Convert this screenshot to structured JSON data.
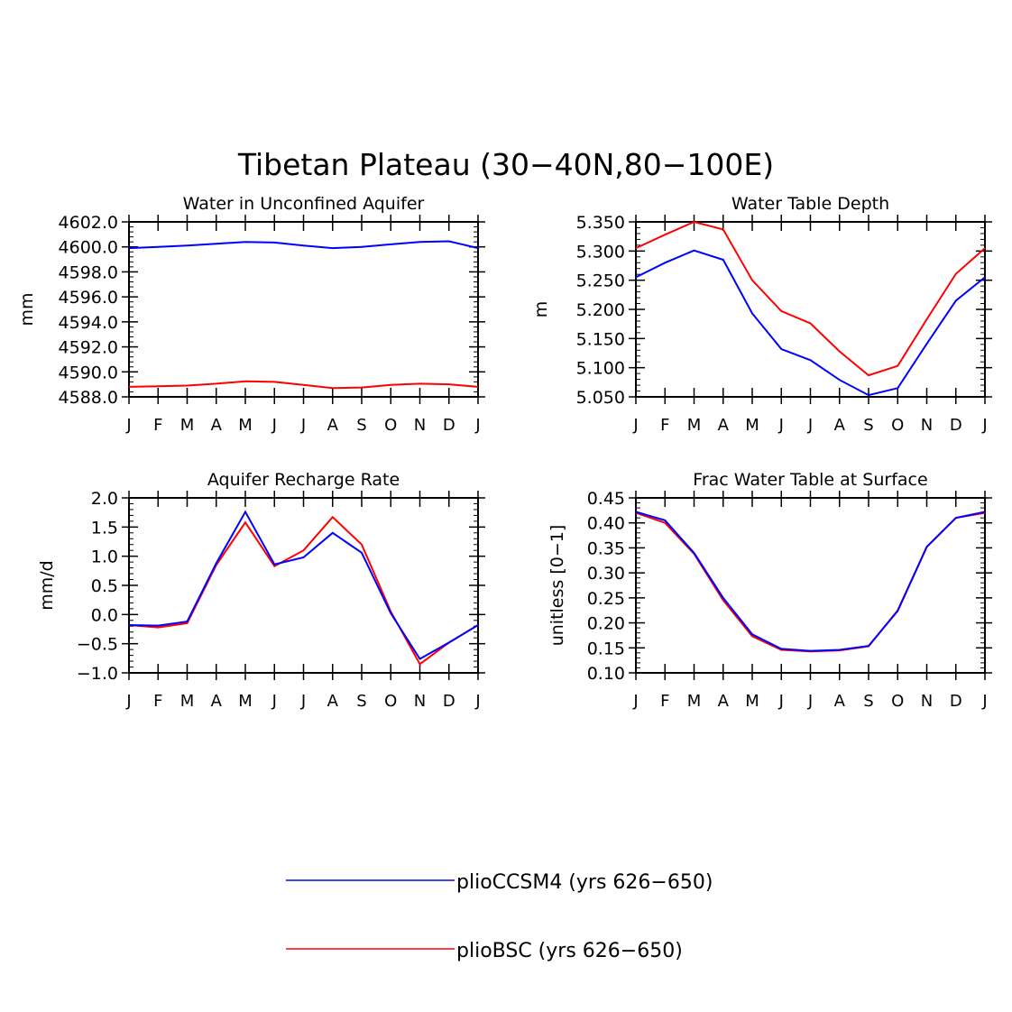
{
  "title": "Tibetan Plateau (30−40N,80−100E)",
  "colors": {
    "series_a": "#0000ff",
    "series_b": "#ff0000",
    "axis": "#000000"
  },
  "legend": [
    {
      "label": "plioCCSM4 (yrs 626−650)",
      "color": "#0000ff"
    },
    {
      "label": "plioBSC (yrs 626−650)",
      "color": "#ff0000"
    }
  ],
  "chart_data": [
    {
      "type": "line",
      "title": "Water in Unconfined Aquifer",
      "ylabel": "mm",
      "xlabel": "",
      "categories": [
        "J",
        "F",
        "M",
        "A",
        "M",
        "J",
        "J",
        "A",
        "S",
        "O",
        "N",
        "D",
        "J"
      ],
      "ylim": [
        4588.0,
        4602.0
      ],
      "yticks": [
        "4588.0",
        "4590.0",
        "4592.0",
        "4594.0",
        "4596.0",
        "4598.0",
        "4600.0",
        "4602.0"
      ],
      "series": [
        {
          "color": "#0000ff",
          "values": [
            4599.9,
            4600.0,
            4600.1,
            4600.25,
            4600.4,
            4600.35,
            4600.1,
            4599.9,
            4600.0,
            4600.2,
            4600.4,
            4600.45,
            4599.9
          ]
        },
        {
          "color": "#ff0000",
          "values": [
            4588.8,
            4588.85,
            4588.9,
            4589.05,
            4589.25,
            4589.2,
            4588.95,
            4588.7,
            4588.75,
            4588.95,
            4589.05,
            4589.0,
            4588.8
          ]
        }
      ]
    },
    {
      "type": "line",
      "title": "Water Table Depth",
      "ylabel": "m",
      "xlabel": "",
      "categories": [
        "J",
        "F",
        "M",
        "A",
        "M",
        "J",
        "J",
        "A",
        "S",
        "O",
        "N",
        "D",
        "J"
      ],
      "ylim": [
        5.05,
        5.35
      ],
      "yticks": [
        "5.050",
        "5.100",
        "5.150",
        "5.200",
        "5.250",
        "5.300",
        "5.350"
      ],
      "series": [
        {
          "color": "#ff0000",
          "values": [
            5.305,
            5.328,
            5.35,
            5.337,
            5.25,
            5.197,
            5.176,
            5.128,
            5.087,
            5.103,
            5.183,
            5.261,
            5.305
          ]
        },
        {
          "color": "#0000ff",
          "values": [
            5.255,
            5.28,
            5.301,
            5.285,
            5.193,
            5.132,
            5.113,
            5.079,
            5.053,
            5.065,
            5.141,
            5.215,
            5.255
          ]
        }
      ]
    },
    {
      "type": "line",
      "title": "Aquifer Recharge Rate",
      "ylabel": "mm/d",
      "xlabel": "",
      "categories": [
        "J",
        "F",
        "M",
        "A",
        "M",
        "J",
        "J",
        "A",
        "S",
        "O",
        "N",
        "D",
        "J"
      ],
      "ylim": [
        -1.0,
        2.0
      ],
      "yticks": [
        "−1.0",
        "−0.5",
        "0.0",
        "0.5",
        "1.0",
        "1.5",
        "2.0"
      ],
      "series": [
        {
          "color": "#ff0000",
          "values": [
            -0.18,
            -0.22,
            -0.15,
            0.85,
            1.58,
            0.83,
            1.1,
            1.67,
            1.2,
            0.05,
            -0.85,
            -0.48,
            -0.18
          ]
        },
        {
          "color": "#0000ff",
          "values": [
            -0.18,
            -0.19,
            -0.12,
            0.88,
            1.76,
            0.86,
            0.98,
            1.4,
            1.06,
            0.02,
            -0.76,
            -0.48,
            -0.18
          ]
        }
      ]
    },
    {
      "type": "line",
      "title": "Frac Water Table at Surface",
      "ylabel": "unitless [0−1]",
      "xlabel": "",
      "categories": [
        "J",
        "F",
        "M",
        "A",
        "M",
        "J",
        "J",
        "A",
        "S",
        "O",
        "N",
        "D",
        "J"
      ],
      "ylim": [
        0.1,
        0.45
      ],
      "yticks": [
        "0.10",
        "0.15",
        "0.20",
        "0.25",
        "0.30",
        "0.35",
        "0.40",
        "0.45"
      ],
      "series": [
        {
          "color": "#ff0000",
          "values": [
            0.42,
            0.4,
            0.338,
            0.245,
            0.173,
            0.146,
            0.143,
            0.145,
            0.153,
            0.225,
            0.352,
            0.41,
            0.42
          ]
        },
        {
          "color": "#0000ff",
          "values": [
            0.422,
            0.405,
            0.34,
            0.25,
            0.177,
            0.148,
            0.144,
            0.146,
            0.154,
            0.224,
            0.352,
            0.41,
            0.422
          ]
        }
      ]
    }
  ]
}
